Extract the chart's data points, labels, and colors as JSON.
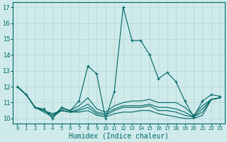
{
  "xlabel": "Humidex (Indice chaleur)",
  "xlim": [
    -0.5,
    23.5
  ],
  "ylim": [
    9.7,
    17.3
  ],
  "yticks": [
    10,
    11,
    12,
    13,
    14,
    15,
    16,
    17
  ],
  "xticks": [
    0,
    1,
    2,
    3,
    4,
    5,
    6,
    7,
    8,
    9,
    10,
    11,
    12,
    13,
    14,
    15,
    16,
    17,
    18,
    19,
    20,
    21,
    22,
    23
  ],
  "background_color": "#ceeaea",
  "grid_color": "#b8d8d8",
  "line_color": "#006666",
  "line1": [
    12.0,
    11.5,
    10.7,
    10.6,
    10.0,
    10.7,
    10.5,
    11.1,
    13.3,
    12.8,
    10.0,
    11.7,
    17.0,
    14.9,
    14.9,
    14.0,
    12.5,
    12.9,
    12.3,
    11.1,
    10.1,
    11.1,
    11.5,
    11.4
  ],
  "line2": [
    12.0,
    11.5,
    10.7,
    10.5,
    10.2,
    10.6,
    10.5,
    10.8,
    11.3,
    10.6,
    10.4,
    10.8,
    11.0,
    11.1,
    11.1,
    11.2,
    11.0,
    11.0,
    11.0,
    10.7,
    10.2,
    10.8,
    11.2,
    11.3
  ],
  "line3": [
    12.0,
    11.5,
    10.7,
    10.4,
    10.1,
    10.5,
    10.4,
    10.4,
    10.5,
    10.2,
    10.1,
    10.3,
    10.4,
    10.4,
    10.5,
    10.5,
    10.3,
    10.2,
    10.1,
    10.0,
    10.0,
    10.2,
    11.2,
    11.3
  ],
  "line4": [
    12.0,
    11.5,
    10.7,
    10.5,
    10.3,
    10.5,
    10.4,
    10.6,
    10.9,
    10.4,
    10.3,
    10.6,
    10.8,
    10.8,
    10.8,
    10.9,
    10.7,
    10.7,
    10.6,
    10.4,
    10.1,
    10.6,
    11.2,
    11.3
  ],
  "line5": [
    12.0,
    11.5,
    10.7,
    10.5,
    10.2,
    10.5,
    10.4,
    10.5,
    10.7,
    10.3,
    10.2,
    10.5,
    10.7,
    10.7,
    10.7,
    10.8,
    10.5,
    10.5,
    10.4,
    10.2,
    10.1,
    10.4,
    11.2,
    11.3
  ]
}
